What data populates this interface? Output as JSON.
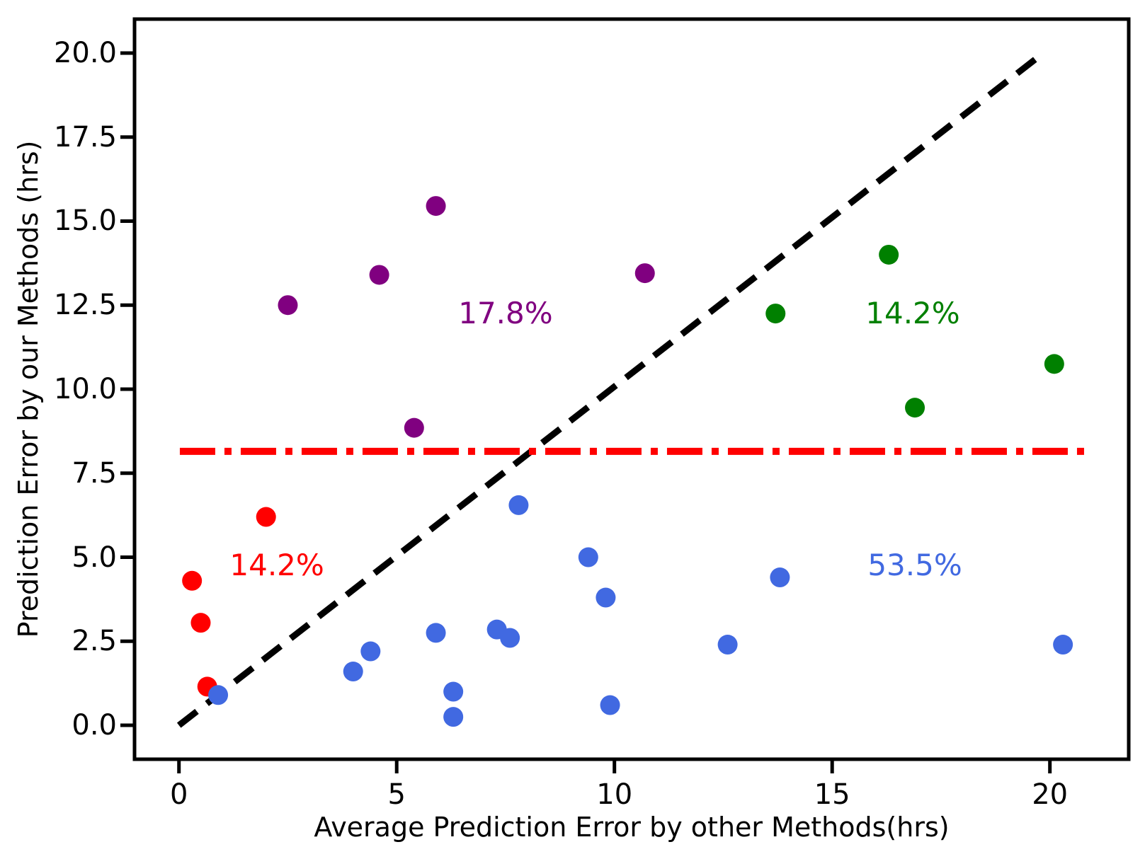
{
  "figure": {
    "background": "#ffffff"
  },
  "chart_data": {
    "type": "scatter",
    "title": "",
    "xlabel": "Average Prediction Error by other Methods(hrs)",
    "ylabel": "Prediction Error by our Methods (hrs)",
    "xlim": [
      -1.02,
      21.81
    ],
    "ylim": [
      -1.01,
      21.01
    ],
    "grid": false,
    "legend_position": "none",
    "x_ticks": [
      {
        "value": 0,
        "label": "0"
      },
      {
        "value": 5,
        "label": "5"
      },
      {
        "value": 10,
        "label": "10"
      },
      {
        "value": 15,
        "label": "15"
      },
      {
        "value": 20,
        "label": "20"
      }
    ],
    "y_ticks": [
      {
        "value": 0,
        "label": "0.0"
      },
      {
        "value": 2.5,
        "label": "2.5"
      },
      {
        "value": 5,
        "label": "5.0"
      },
      {
        "value": 7.5,
        "label": "7.5"
      },
      {
        "value": 10,
        "label": "10.0"
      },
      {
        "value": 12.5,
        "label": "12.5"
      },
      {
        "value": 15,
        "label": "15.0"
      },
      {
        "value": 17.5,
        "label": "17.5"
      },
      {
        "value": 20,
        "label": "20.0"
      }
    ],
    "series": [
      {
        "name": "red-group",
        "color": "#ff0000",
        "annotation": {
          "text": "14.2%",
          "x": 2.25,
          "y": 4.75
        },
        "points": [
          [
            0.3,
            4.3
          ],
          [
            0.5,
            3.05
          ],
          [
            0.65,
            1.15
          ],
          [
            2.0,
            6.2
          ]
        ]
      },
      {
        "name": "purple-group",
        "color": "#800080",
        "annotation": {
          "text": "17.8%",
          "x": 7.5,
          "y": 12.25
        },
        "points": [
          [
            2.5,
            12.5
          ],
          [
            4.6,
            13.4
          ],
          [
            5.4,
            8.85
          ],
          [
            5.9,
            15.45
          ],
          [
            10.7,
            13.45
          ]
        ]
      },
      {
        "name": "green-group",
        "color": "#008000",
        "annotation": {
          "text": "14.2%",
          "x": 16.85,
          "y": 12.25
        },
        "points": [
          [
            13.7,
            12.25
          ],
          [
            16.3,
            14.0
          ],
          [
            16.9,
            9.45
          ],
          [
            20.1,
            10.75
          ]
        ]
      },
      {
        "name": "blue-group",
        "color": "#4169e1",
        "annotation": {
          "text": "53.5%",
          "x": 16.9,
          "y": 4.75
        },
        "points": [
          [
            0.9,
            0.9
          ],
          [
            4.0,
            1.6
          ],
          [
            4.4,
            2.2
          ],
          [
            5.9,
            2.75
          ],
          [
            6.3,
            1.0
          ],
          [
            6.3,
            0.25
          ],
          [
            7.3,
            2.85
          ],
          [
            7.6,
            2.6
          ],
          [
            7.8,
            6.55
          ],
          [
            9.4,
            5.0
          ],
          [
            9.8,
            3.8
          ],
          [
            9.9,
            0.6
          ],
          [
            12.6,
            2.4
          ],
          [
            13.8,
            4.4
          ],
          [
            20.3,
            2.4
          ]
        ]
      }
    ],
    "lines": [
      {
        "name": "identity-line",
        "style": "dashed",
        "color": "#000000",
        "x1": 0,
        "y1": 0,
        "x2": 19.85,
        "y2": 20.0
      },
      {
        "name": "threshold-line",
        "style": "dashdot",
        "color": "#ff0000",
        "x1": 0.02,
        "y1": 8.15,
        "x2": 20.8,
        "y2": 8.15
      }
    ]
  }
}
